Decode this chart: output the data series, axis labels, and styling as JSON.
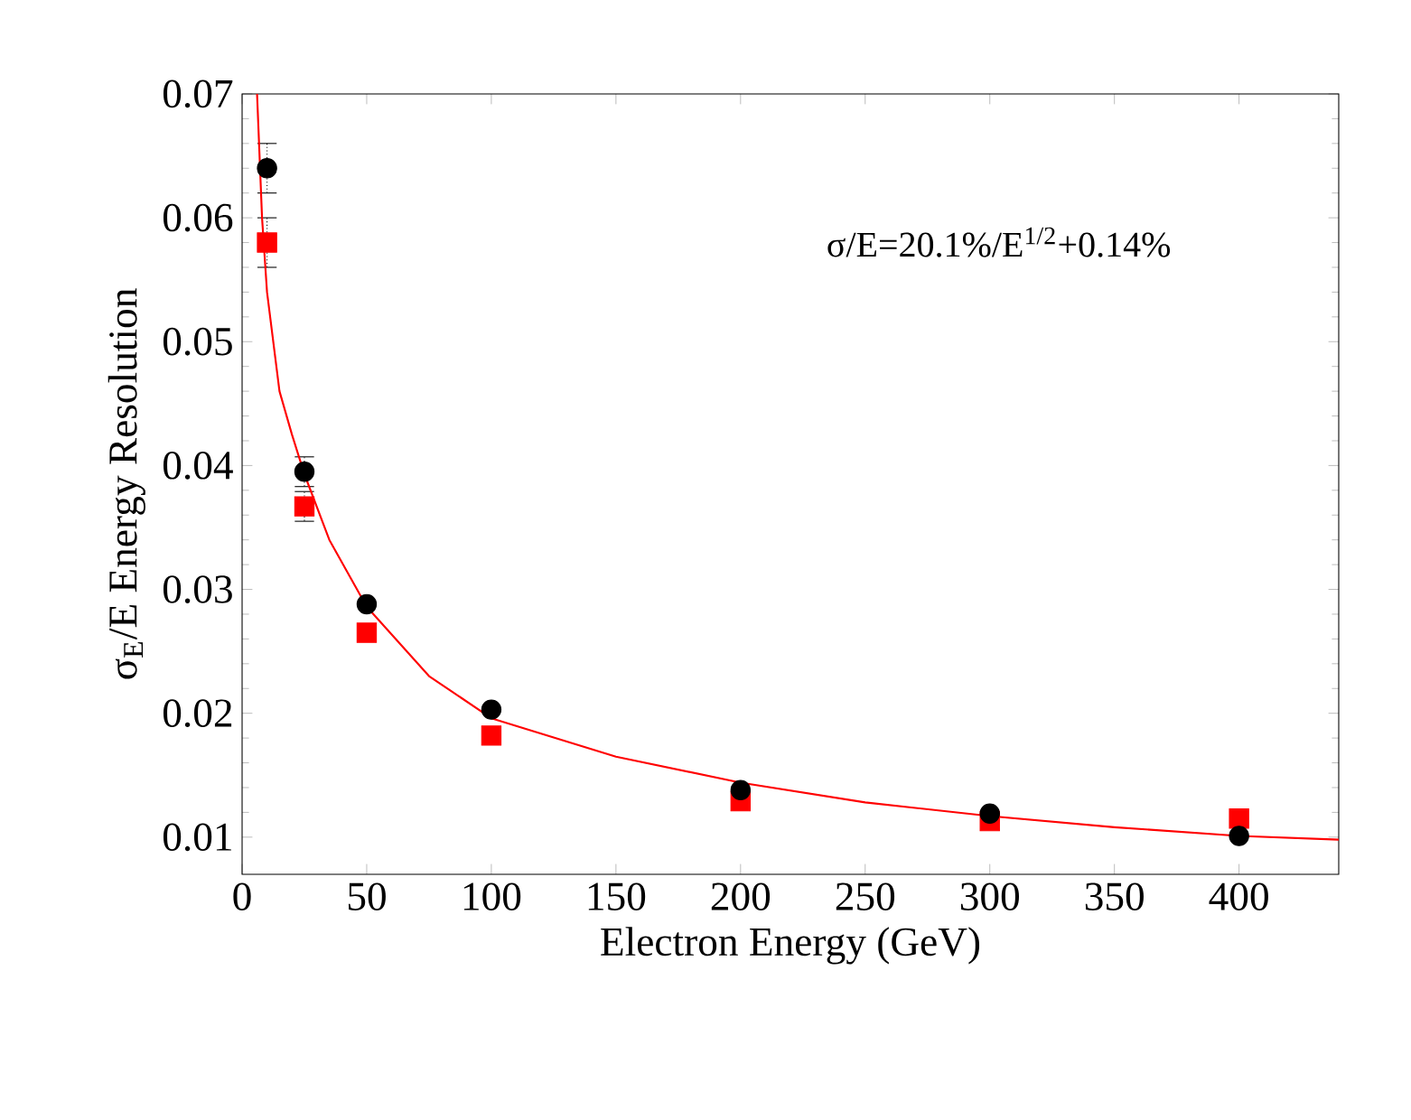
{
  "chart_data": {
    "type": "scatter",
    "xlabel": "Electron Energy (GeV)",
    "ylabel": "σ$_{E}$/E Energy Resolution",
    "annotations": [
      "σ/E=20.1%/E$^{1/2}$+0.14%"
    ],
    "x": [
      10,
      25,
      50,
      100,
      200,
      300,
      400
    ],
    "series": [
      {
        "color": "#ff0000",
        "marker": "square",
        "values": [
          0.058,
          0.0367,
          0.0265,
          0.0182,
          0.0129,
          0.0113,
          0.0115
        ],
        "errors": [
          0.002,
          0.0012,
          null,
          null,
          null,
          null,
          null
        ]
      },
      {
        "color": "#000000",
        "marker": "circle",
        "values": [
          0.064,
          0.0395,
          0.0288,
          0.0203,
          0.0138,
          0.0119,
          0.0101
        ],
        "errors": [
          0.002,
          0.0012,
          null,
          null,
          null,
          null,
          null
        ]
      },
      {
        "type": "line",
        "color": "#ff0000",
        "marker": "none",
        "x": [
          6,
          8,
          10,
          15,
          20,
          25,
          35,
          50,
          75,
          100,
          150,
          200,
          250,
          300,
          350,
          400,
          440
        ],
        "values": [
          0.07,
          0.06,
          0.054,
          0.046,
          0.0425,
          0.0393,
          0.034,
          0.0286,
          0.023,
          0.0196,
          0.0165,
          0.0144,
          0.0128,
          0.0117,
          0.0108,
          0.0101,
          0.0098
        ]
      }
    ],
    "xlim": [
      0,
      440
    ],
    "ylim": [
      0.007,
      0.07
    ],
    "xticks": [
      0,
      50,
      100,
      150,
      200,
      250,
      300,
      350,
      400
    ],
    "yticks": [
      0.01,
      0.02,
      0.03,
      0.04,
      0.05,
      0.06,
      0.07
    ],
    "grid": false
  }
}
